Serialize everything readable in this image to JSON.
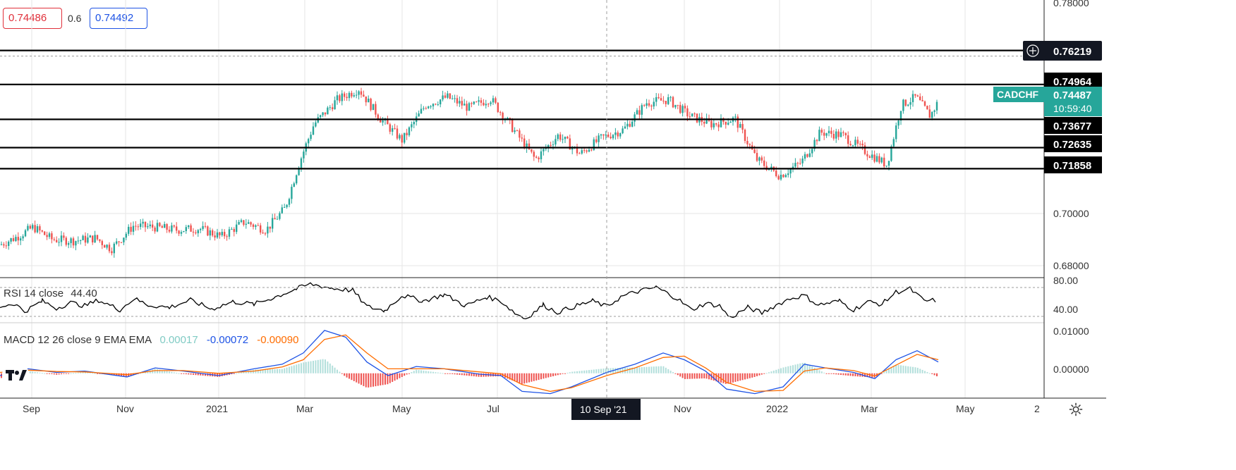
{
  "quote": {
    "bid": "0.74486",
    "spread": "0.6",
    "ask": "0.74492"
  },
  "colors": {
    "up": "#26a69a",
    "down": "#ef5350",
    "level_line": "#000000",
    "rsi_line": "#000000",
    "macd_line": "#1e53e5",
    "signal_line": "#ff6d00",
    "hist_pos": "#b2dfdb",
    "hist_neg": "#ef5350",
    "tag": "#26a69a",
    "grid": "#e6e6e6"
  },
  "chart_data": [
    {
      "type": "candlestick",
      "symbol": "CADCHF",
      "current_price": "0.74487",
      "countdown": "10:59:40",
      "ylim": [
        0.6784,
        0.7808
      ],
      "y_ticks": [
        "0.78000",
        "0.70000",
        "0.68000"
      ],
      "x_ticks": [
        "Sep",
        "Nov",
        "2021",
        "Mar",
        "May",
        "Jul",
        "10 Sep '21",
        "Nov",
        "2022",
        "Mar",
        "May",
        "2"
      ],
      "crosshair_label": "10 Sep '21",
      "levels": [
        {
          "value": 0.76219,
          "label": "0.76219",
          "marker": "plus-icon"
        },
        {
          "value": 0.74964,
          "label": "0.74964"
        },
        {
          "value": 0.73677,
          "label": "0.73677"
        },
        {
          "value": 0.72635,
          "label": "0.72635"
        },
        {
          "value": 0.71858,
          "label": "0.71858"
        }
      ],
      "close_path": [
        [
          "2020-08-20",
          0.6905
        ],
        [
          "2020-09-01",
          0.6935
        ],
        [
          "2020-09-12",
          0.697
        ],
        [
          "2020-09-25",
          0.6925
        ],
        [
          "2020-10-10",
          0.692
        ],
        [
          "2020-10-25",
          0.693
        ],
        [
          "2020-11-05",
          0.689
        ],
        [
          "2020-11-20",
          0.6975
        ],
        [
          "2020-12-05",
          0.697
        ],
        [
          "2020-12-20",
          0.696
        ],
        [
          "2021-01-05",
          0.6965
        ],
        [
          "2021-01-20",
          0.6935
        ],
        [
          "2021-02-05",
          0.699
        ],
        [
          "2021-02-20",
          0.696
        ],
        [
          "2021-03-05",
          0.704
        ],
        [
          "2021-03-15",
          0.721
        ],
        [
          "2021-03-25",
          0.735
        ],
        [
          "2021-04-10",
          0.744
        ],
        [
          "2021-04-25",
          0.748
        ],
        [
          "2021-05-10",
          0.737
        ],
        [
          "2021-05-25",
          0.729
        ],
        [
          "2021-06-10",
          0.742
        ],
        [
          "2021-06-25",
          0.745
        ],
        [
          "2021-07-10",
          0.741
        ],
        [
          "2021-07-25",
          0.7445
        ],
        [
          "2021-08-10",
          0.733
        ],
        [
          "2021-08-25",
          0.722
        ],
        [
          "2021-09-10",
          0.731
        ],
        [
          "2021-09-25",
          0.724
        ],
        [
          "2021-10-10",
          0.73
        ],
        [
          "2021-10-25",
          0.733
        ],
        [
          "2021-11-10",
          0.743
        ],
        [
          "2021-11-25",
          0.744
        ],
        [
          "2021-12-10",
          0.738
        ],
        [
          "2021-12-25",
          0.735
        ],
        [
          "2022-01-10",
          0.737
        ],
        [
          "2022-01-25",
          0.722
        ],
        [
          "2022-02-10",
          0.716
        ],
        [
          "2022-02-25",
          0.721
        ],
        [
          "2022-03-10",
          0.732
        ],
        [
          "2022-03-25",
          0.731
        ],
        [
          "2022-04-10",
          0.725
        ],
        [
          "2022-04-25",
          0.72
        ],
        [
          "2022-05-05",
          0.742
        ],
        [
          "2022-05-15",
          0.745
        ],
        [
          "2022-05-25",
          0.738
        ],
        [
          "2022-06-01",
          0.7449
        ]
      ]
    },
    {
      "type": "line",
      "title": "RSI 14 close",
      "value_label": "44.40",
      "y_ticks": [
        "80.00",
        "40.00"
      ],
      "ylim": [
        28,
        84
      ],
      "series": [
        {
          "values": [
            [
              0,
              48
            ],
            [
              20,
              52
            ],
            [
              35,
              42
            ],
            [
              60,
              55
            ],
            [
              80,
              46
            ],
            [
              100,
              53
            ],
            [
              120,
              49
            ],
            [
              140,
              56
            ],
            [
              170,
              44
            ],
            [
              190,
              58
            ],
            [
              210,
              50
            ],
            [
              240,
              47
            ],
            [
              270,
              56
            ],
            [
              300,
              45
            ],
            [
              330,
              54
            ],
            [
              360,
              51
            ],
            [
              390,
              60
            ],
            [
              420,
              70
            ],
            [
              440,
              76
            ],
            [
              470,
              71
            ],
            [
              500,
              68
            ],
            [
              520,
              48
            ],
            [
              545,
              43
            ],
            [
              570,
              62
            ],
            [
              600,
              55
            ],
            [
              630,
              63
            ],
            [
              660,
              49
            ],
            [
              690,
              60
            ],
            [
              710,
              55
            ],
            [
              730,
              40
            ],
            [
              745,
              33
            ],
            [
              770,
              50
            ],
            [
              790,
              41
            ],
            [
              810,
              47
            ],
            [
              840,
              55
            ],
            [
              860,
              48
            ],
            [
              880,
              60
            ],
            [
              900,
              66
            ],
            [
              930,
              72
            ],
            [
              960,
              58
            ],
            [
              980,
              44
            ],
            [
              1000,
              52
            ],
            [
              1020,
              49
            ],
            [
              1035,
              34
            ],
            [
              1060,
              47
            ],
            [
              1080,
              40
            ],
            [
              1100,
              50
            ],
            [
              1120,
              58
            ],
            [
              1140,
              62
            ],
            [
              1160,
              50
            ],
            [
              1190,
              55
            ],
            [
              1210,
              44
            ],
            [
              1230,
              54
            ],
            [
              1250,
              51
            ],
            [
              1270,
              66
            ],
            [
              1290,
              70
            ],
            [
              1310,
              55
            ],
            [
              1330,
              56
            ]
          ]
        }
      ]
    },
    {
      "type": "macd",
      "title": "MACD 12 26 close 9 EMA EMA",
      "value_hist": "0.00017",
      "value_macd": "-0.00072",
      "value_signal": "-0.00090",
      "y_ticks": [
        "0.01000",
        "0.00000"
      ],
      "ylim": [
        -0.0055,
        0.0112
      ],
      "macd": [
        [
          0,
          -0.0005
        ],
        [
          40,
          0.001
        ],
        [
          80,
          0.0002
        ],
        [
          120,
          0.0005
        ],
        [
          180,
          -0.0008
        ],
        [
          220,
          0.0012
        ],
        [
          260,
          0.0005
        ],
        [
          310,
          -0.0005
        ],
        [
          360,
          0.001
        ],
        [
          400,
          0.002
        ],
        [
          430,
          0.0045
        ],
        [
          460,
          0.0095
        ],
        [
          490,
          0.008
        ],
        [
          520,
          0.0025
        ],
        [
          550,
          -0.0005
        ],
        [
          590,
          0.0015
        ],
        [
          630,
          0.001
        ],
        [
          680,
          -0.0002
        ],
        [
          710,
          -0.0005
        ],
        [
          740,
          -0.004
        ],
        [
          780,
          -0.0045
        ],
        [
          810,
          -0.003
        ],
        [
          860,
          0.0002
        ],
        [
          900,
          0.002
        ],
        [
          940,
          0.0045
        ],
        [
          970,
          0.003
        ],
        [
          1000,
          0.0005
        ],
        [
          1030,
          -0.0035
        ],
        [
          1070,
          -0.0045
        ],
        [
          1110,
          -0.003
        ],
        [
          1140,
          0.002
        ],
        [
          1170,
          0.0012
        ],
        [
          1210,
          0.0002
        ],
        [
          1240,
          -0.0012
        ],
        [
          1270,
          0.003
        ],
        [
          1300,
          0.005
        ],
        [
          1330,
          0.0025
        ]
      ],
      "signal": [
        [
          0,
          0.0002
        ],
        [
          40,
          0.0007
        ],
        [
          80,
          0.0004
        ],
        [
          120,
          0.0003
        ],
        [
          180,
          -0.0003
        ],
        [
          220,
          0.0006
        ],
        [
          260,
          0.0006
        ],
        [
          310,
          0.0
        ],
        [
          360,
          0.0005
        ],
        [
          400,
          0.0014
        ],
        [
          430,
          0.003
        ],
        [
          460,
          0.0075
        ],
        [
          490,
          0.0085
        ],
        [
          520,
          0.0045
        ],
        [
          550,
          0.001
        ],
        [
          590,
          0.001
        ],
        [
          630,
          0.001
        ],
        [
          680,
          0.0003
        ],
        [
          710,
          -0.0001
        ],
        [
          740,
          -0.0025
        ],
        [
          780,
          -0.004
        ],
        [
          810,
          -0.0032
        ],
        [
          860,
          -0.0005
        ],
        [
          900,
          0.0012
        ],
        [
          940,
          0.0035
        ],
        [
          970,
          0.0038
        ],
        [
          1000,
          0.0012
        ],
        [
          1030,
          -0.002
        ],
        [
          1070,
          -0.004
        ],
        [
          1110,
          -0.0038
        ],
        [
          1140,
          0.0005
        ],
        [
          1170,
          0.0012
        ],
        [
          1210,
          0.0006
        ],
        [
          1240,
          -0.0006
        ],
        [
          1270,
          0.0018
        ],
        [
          1300,
          0.0042
        ],
        [
          1330,
          0.003
        ]
      ]
    }
  ]
}
